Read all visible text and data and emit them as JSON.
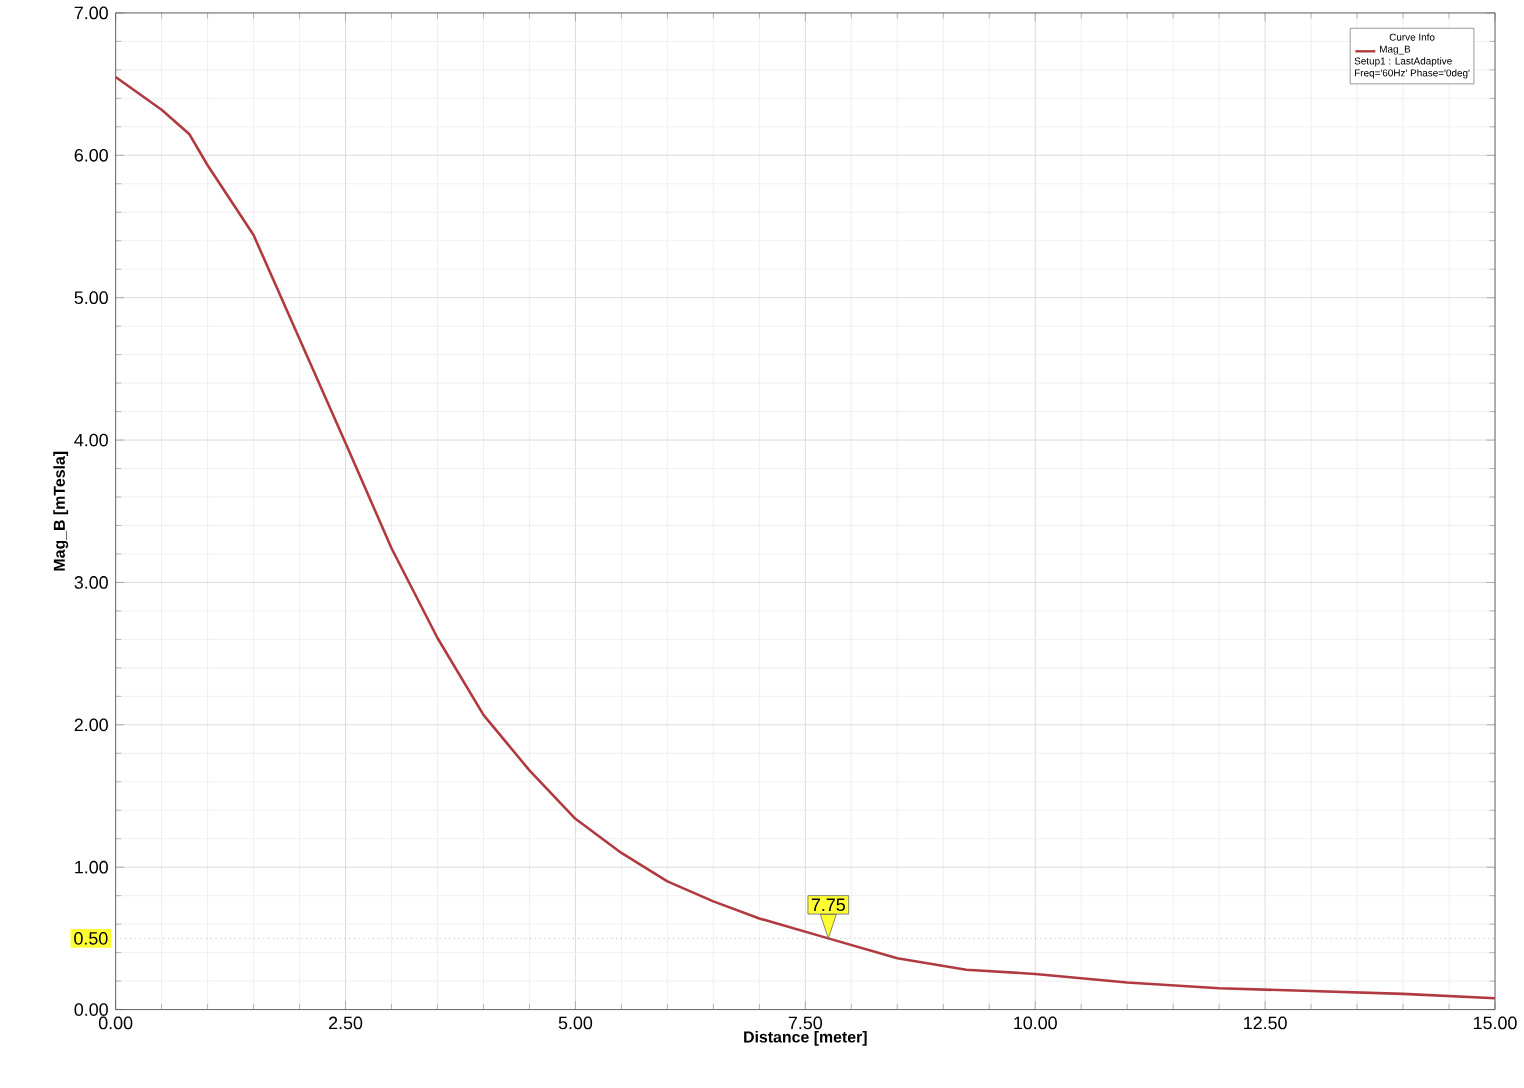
{
  "chart_data": {
    "type": "line",
    "xlabel": "Distance [meter]",
    "ylabel": "Mag_B [mTesla]",
    "legend_title": "Curve Info",
    "x": [
      0,
      0.5,
      0.8,
      1.0,
      1.5,
      2.0,
      2.5,
      3.0,
      3.5,
      4.0,
      4.5,
      5.0,
      5.5,
      6.0,
      6.5,
      7.0,
      7.75,
      8.5,
      9.25,
      10,
      11,
      12,
      13,
      14,
      15
    ],
    "series": [
      {
        "name": "Mag_B",
        "color": "#b03a40",
        "values": [
          6.55,
          6.32,
          6.15,
          5.93,
          5.44,
          4.71,
          3.98,
          3.24,
          2.61,
          2.07,
          1.68,
          1.34,
          1.1,
          0.9,
          0.76,
          0.64,
          0.5,
          0.36,
          0.28,
          0.25,
          0.19,
          0.15,
          0.13,
          0.11,
          0.08
        ]
      }
    ],
    "xlim": [
      0,
      15
    ],
    "ylim": [
      0,
      7
    ],
    "xticks": [
      {
        "value": 0,
        "label": "0.00"
      },
      {
        "value": 2.5,
        "label": "2.50"
      },
      {
        "value": 5,
        "label": "5.00"
      },
      {
        "value": 7.5,
        "label": "7.50"
      },
      {
        "value": 10,
        "label": "10.00"
      },
      {
        "value": 12.5,
        "label": "12.50"
      },
      {
        "value": 15,
        "label": "15.00"
      }
    ],
    "yticks": [
      {
        "value": 0,
        "label": "0.00"
      },
      {
        "value": 1,
        "label": "1.00"
      },
      {
        "value": 2,
        "label": "2.00"
      },
      {
        "value": 3,
        "label": "3.00"
      },
      {
        "value": 4,
        "label": "4.00"
      },
      {
        "value": 5,
        "label": "5.00"
      },
      {
        "value": 6,
        "label": "6.00"
      },
      {
        "value": 7,
        "label": "7.00"
      }
    ],
    "ref_lines": [
      {
        "axis": "y",
        "value": 0.5,
        "label": "0.50",
        "color": "#999999",
        "line_style": "dotted"
      }
    ],
    "annotations": [
      {
        "text": "7.75",
        "x": 7.75,
        "y": 0.5
      },
      "Setup1 : LastAdaptive",
      "Freq='60Hz' Phase='0deg'"
    ],
    "grid": true,
    "legend": "top right",
    "marker": "none",
    "line_style": "solid"
  }
}
